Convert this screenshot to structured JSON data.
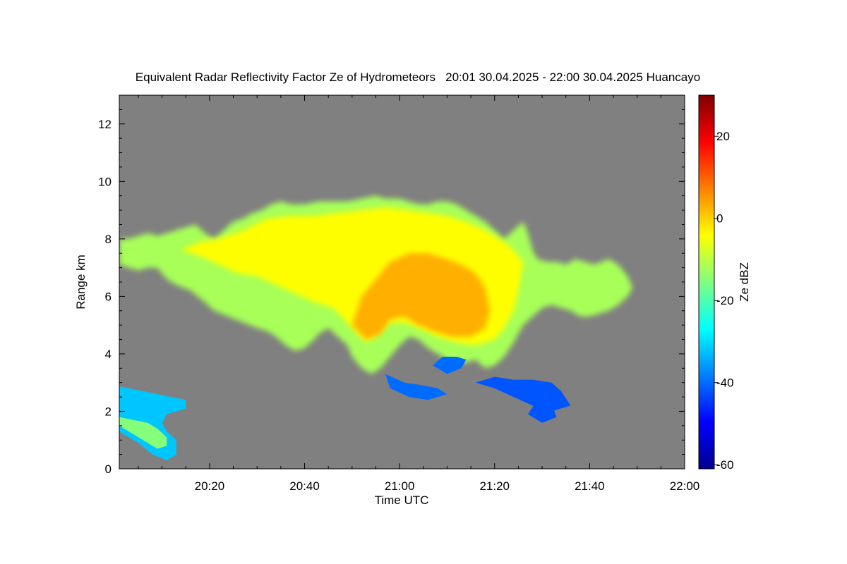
{
  "chart_data": {
    "type": "heatmap",
    "title": "Equivalent Radar Reflectivity Factor Ze of Hydrometeors   20:01 30.04.2025 - 22:00 30.04.2025 Huancayo",
    "xlabel": "Time UTC",
    "ylabel": "Range km",
    "x_ticks": [
      "20:20",
      "20:40",
      "21:00",
      "21:20",
      "21:40",
      "22:00"
    ],
    "x_tick_minutes": [
      20,
      40,
      60,
      80,
      100,
      120
    ],
    "xlim_minutes": [
      1,
      120
    ],
    "y_ticks": [
      0,
      2,
      4,
      6,
      8,
      10,
      12
    ],
    "ylim": [
      0,
      13
    ],
    "colorbar": {
      "label": "Ze dBZ",
      "ticks": [
        20,
        0,
        -20,
        -40,
        -60
      ],
      "range": [
        -61,
        30
      ],
      "colormap": "jet"
    },
    "background_color": "#808080",
    "echo_regions": [
      {
        "label": "main-cloud",
        "ze_dbz": -12,
        "outline": [
          [
            1,
            7.1
          ],
          [
            3,
            7.0
          ],
          [
            5,
            6.9
          ],
          [
            7,
            7.0
          ],
          [
            9,
            7.0
          ],
          [
            11,
            6.6
          ],
          [
            13,
            6.4
          ],
          [
            16,
            6.2
          ],
          [
            19,
            5.8
          ],
          [
            21,
            5.5
          ],
          [
            24,
            5.3
          ],
          [
            27,
            5.1
          ],
          [
            30,
            4.9
          ],
          [
            32,
            4.8
          ],
          [
            34,
            4.6
          ],
          [
            36,
            4.3
          ],
          [
            38,
            4.1
          ],
          [
            40,
            4.2
          ],
          [
            42,
            4.5
          ],
          [
            43,
            4.7
          ],
          [
            45,
            4.9
          ],
          [
            47,
            4.6
          ],
          [
            49,
            4.3
          ],
          [
            50,
            3.9
          ],
          [
            52,
            3.5
          ],
          [
            54,
            3.3
          ],
          [
            56,
            3.5
          ],
          [
            58,
            3.9
          ],
          [
            60,
            4.3
          ],
          [
            62,
            4.6
          ],
          [
            64,
            4.5
          ],
          [
            66,
            4.2
          ],
          [
            68,
            4.0
          ],
          [
            70,
            3.8
          ],
          [
            72,
            3.7
          ],
          [
            74,
            3.7
          ],
          [
            76,
            3.8
          ],
          [
            78,
            3.5
          ],
          [
            80,
            3.6
          ],
          [
            82,
            3.9
          ],
          [
            84,
            4.4
          ],
          [
            86,
            5.0
          ],
          [
            88,
            5.3
          ],
          [
            90,
            5.6
          ],
          [
            92,
            5.7
          ],
          [
            94,
            5.6
          ],
          [
            96,
            5.5
          ],
          [
            98,
            5.3
          ],
          [
            100,
            5.3
          ],
          [
            102,
            5.4
          ],
          [
            104,
            5.5
          ],
          [
            106,
            5.7
          ],
          [
            108,
            6.0
          ],
          [
            109,
            6.3
          ],
          [
            108,
            6.7
          ],
          [
            106,
            7.1
          ],
          [
            104,
            7.3
          ],
          [
            101,
            7.1
          ],
          [
            99,
            7.2
          ],
          [
            97,
            7.3
          ],
          [
            95,
            7.1
          ],
          [
            93,
            7.2
          ],
          [
            91,
            7.2
          ],
          [
            89,
            7.3
          ],
          [
            88,
            7.6
          ],
          [
            87,
            8.2
          ],
          [
            86,
            8.6
          ],
          [
            84,
            8.3
          ],
          [
            82,
            8.0
          ],
          [
            80,
            8.3
          ],
          [
            78,
            8.6
          ],
          [
            76,
            8.8
          ],
          [
            74,
            9.0
          ],
          [
            72,
            9.2
          ],
          [
            70,
            9.3
          ],
          [
            68,
            9.3
          ],
          [
            66,
            9.2
          ],
          [
            64,
            9.2
          ],
          [
            62,
            9.3
          ],
          [
            60,
            9.4
          ],
          [
            57,
            9.4
          ],
          [
            55,
            9.5
          ],
          [
            52,
            9.4
          ],
          [
            49,
            9.3
          ],
          [
            46,
            9.3
          ],
          [
            43,
            9.3
          ],
          [
            40,
            9.2
          ],
          [
            37,
            9.2
          ],
          [
            35,
            9.3
          ],
          [
            33,
            9.2
          ],
          [
            31,
            9.0
          ],
          [
            29,
            8.9
          ],
          [
            27,
            8.7
          ],
          [
            25,
            8.6
          ],
          [
            23,
            8.3
          ],
          [
            21,
            8.0
          ],
          [
            19,
            8.2
          ],
          [
            17,
            8.5
          ],
          [
            15,
            8.4
          ],
          [
            13,
            8.3
          ],
          [
            11,
            8.2
          ],
          [
            9,
            8.1
          ],
          [
            7,
            8.2
          ],
          [
            5,
            8.1
          ],
          [
            3,
            8.0
          ],
          [
            1,
            8.0
          ]
        ]
      },
      {
        "label": "yellow-mid",
        "ze_dbz": -4,
        "outline": [
          [
            14,
            7.6
          ],
          [
            18,
            7.4
          ],
          [
            22,
            7.1
          ],
          [
            26,
            6.8
          ],
          [
            30,
            6.7
          ],
          [
            34,
            6.4
          ],
          [
            38,
            6.1
          ],
          [
            42,
            5.8
          ],
          [
            46,
            5.6
          ],
          [
            50,
            4.9
          ],
          [
            53,
            4.4
          ],
          [
            55,
            4.6
          ],
          [
            58,
            5.1
          ],
          [
            61,
            5.1
          ],
          [
            64,
            4.9
          ],
          [
            68,
            4.6
          ],
          [
            72,
            4.4
          ],
          [
            76,
            4.3
          ],
          [
            80,
            4.5
          ],
          [
            82,
            4.9
          ],
          [
            84,
            5.5
          ],
          [
            85,
            6.2
          ],
          [
            86,
            7.2
          ],
          [
            84,
            7.6
          ],
          [
            82,
            7.9
          ],
          [
            78,
            8.3
          ],
          [
            74,
            8.6
          ],
          [
            70,
            8.8
          ],
          [
            66,
            8.9
          ],
          [
            62,
            9.0
          ],
          [
            57,
            9.1
          ],
          [
            52,
            9.0
          ],
          [
            47,
            8.9
          ],
          [
            42,
            8.8
          ],
          [
            37,
            8.8
          ],
          [
            32,
            8.7
          ],
          [
            27,
            8.3
          ],
          [
            22,
            8.0
          ],
          [
            18,
            7.9
          ]
        ]
      },
      {
        "label": "core-orange",
        "ze_dbz": 3,
        "outline": [
          [
            50,
            5.0
          ],
          [
            53,
            4.5
          ],
          [
            56,
            4.7
          ],
          [
            58,
            5.2
          ],
          [
            61,
            5.3
          ],
          [
            64,
            5.0
          ],
          [
            67,
            4.8
          ],
          [
            71,
            4.6
          ],
          [
            75,
            4.6
          ],
          [
            78,
            4.9
          ],
          [
            79,
            5.5
          ],
          [
            78,
            6.3
          ],
          [
            76,
            6.8
          ],
          [
            73,
            7.1
          ],
          [
            70,
            7.3
          ],
          [
            66,
            7.5
          ],
          [
            62,
            7.5
          ],
          [
            58,
            7.2
          ],
          [
            55,
            6.6
          ],
          [
            52,
            6.0
          ]
        ]
      },
      {
        "label": "left-low-echo",
        "ze_dbz": -32,
        "outline": [
          [
            0,
            2.9
          ],
          [
            3,
            2.8
          ],
          [
            6,
            2.7
          ],
          [
            9,
            2.6
          ],
          [
            12,
            2.5
          ],
          [
            15,
            2.4
          ],
          [
            15,
            2.1
          ],
          [
            11,
            1.9
          ],
          [
            10,
            1.6
          ],
          [
            11,
            1.3
          ],
          [
            13,
            1.0
          ],
          [
            13,
            0.5
          ],
          [
            11,
            0.3
          ],
          [
            8,
            0.5
          ],
          [
            5,
            0.9
          ],
          [
            2,
            1.2
          ],
          [
            0,
            1.4
          ]
        ]
      },
      {
        "label": "left-low-core",
        "ze_dbz": -15,
        "outline": [
          [
            1,
            1.8
          ],
          [
            4,
            1.7
          ],
          [
            7,
            1.6
          ],
          [
            9,
            1.4
          ],
          [
            11,
            1.1
          ],
          [
            11,
            0.8
          ],
          [
            9,
            0.7
          ],
          [
            6,
            1.0
          ],
          [
            3,
            1.3
          ],
          [
            1,
            1.5
          ]
        ]
      },
      {
        "label": "scattered-echo-1",
        "ze_dbz": -40,
        "outline": [
          [
            57,
            3.3
          ],
          [
            61,
            3.0
          ],
          [
            65,
            2.9
          ],
          [
            68,
            2.8
          ],
          [
            70,
            2.6
          ],
          [
            66,
            2.4
          ],
          [
            62,
            2.5
          ],
          [
            58,
            2.8
          ]
        ]
      },
      {
        "label": "scattered-echo-2",
        "ze_dbz": -40,
        "outline": [
          [
            67,
            3.6
          ],
          [
            70,
            3.3
          ],
          [
            73,
            3.5
          ],
          [
            74,
            3.8
          ],
          [
            72,
            3.9
          ],
          [
            69,
            3.9
          ]
        ]
      },
      {
        "label": "scattered-echo-3",
        "ze_dbz": -42,
        "outline": [
          [
            76,
            3.0
          ],
          [
            80,
            2.8
          ],
          [
            84,
            2.5
          ],
          [
            88,
            2.2
          ],
          [
            92,
            2.0
          ],
          [
            96,
            2.2
          ],
          [
            94,
            2.7
          ],
          [
            92,
            3.0
          ],
          [
            88,
            3.1
          ],
          [
            84,
            3.1
          ],
          [
            80,
            3.2
          ]
        ]
      },
      {
        "label": "scattered-echo-4",
        "ze_dbz": -42,
        "outline": [
          [
            87,
            1.9
          ],
          [
            90,
            1.6
          ],
          [
            93,
            1.8
          ],
          [
            92,
            2.3
          ],
          [
            89,
            2.4
          ]
        ]
      }
    ]
  }
}
